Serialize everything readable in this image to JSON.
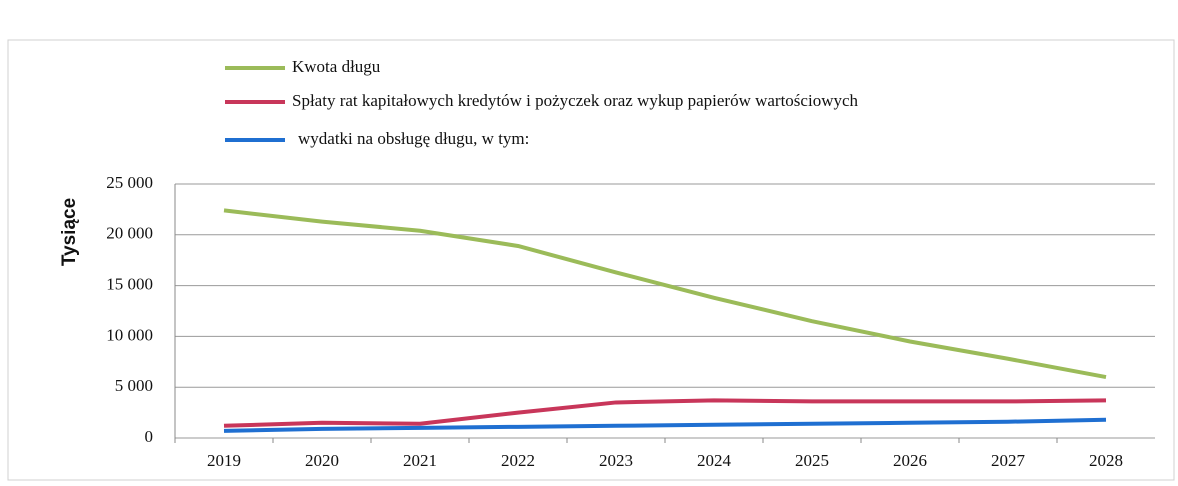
{
  "chart_data": {
    "type": "line",
    "y_label": "Tysiące",
    "categories": [
      "2019",
      "2020",
      "2021",
      "2022",
      "2023",
      "2024",
      "2025",
      "2026",
      "2027",
      "2028"
    ],
    "series": [
      {
        "name": "Kwota długu",
        "color": "#9bbb59",
        "values": [
          22400,
          21300,
          20400,
          18900,
          16300,
          13800,
          11500,
          9500,
          7800,
          6000
        ]
      },
      {
        "name": "Spłaty rat kapitałowych kredytów i pożyczek oraz wykup papierów wartościowych",
        "color": "#c8365a",
        "values": [
          1200,
          1500,
          1400,
          2500,
          3500,
          3700,
          3600,
          3600,
          3600,
          3700
        ]
      },
      {
        "name": "wydatki na obsługę długu, w tym:",
        "color": "#1f6fd1",
        "values": [
          700,
          900,
          1000,
          1100,
          1200,
          1300,
          1400,
          1500,
          1600,
          1800
        ]
      }
    ],
    "ylim": [
      0,
      25000
    ],
    "yticks": [
      {
        "value": 0,
        "label": "0"
      },
      {
        "value": 5000,
        "label": "5 000"
      },
      {
        "value": 10000,
        "label": "10 000"
      },
      {
        "value": 15000,
        "label": "15 000"
      },
      {
        "value": 20000,
        "label": "20 000"
      },
      {
        "value": 25000,
        "label": "25 000"
      }
    ],
    "grid": true
  }
}
